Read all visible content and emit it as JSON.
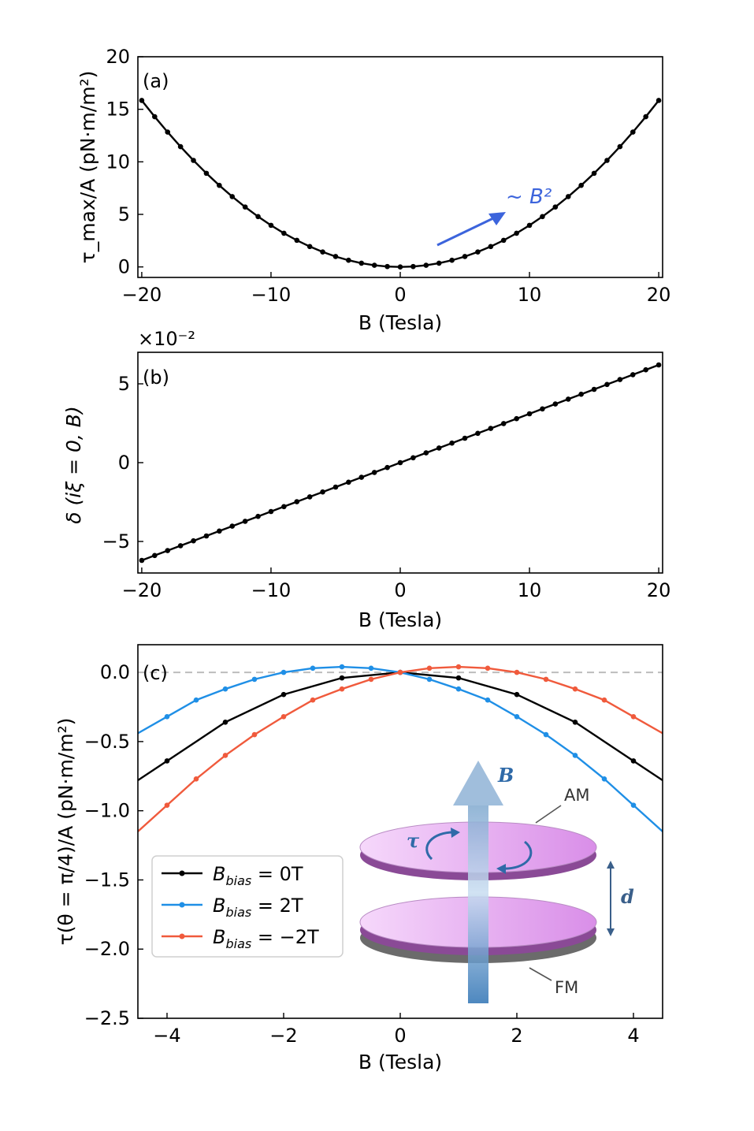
{
  "colors": {
    "black": "#000000",
    "blue": "#1f8fe6",
    "red": "#f05a3c",
    "annot": "#3c64dc",
    "disk": "#e7a6f2",
    "disk_edge": "#8a4a96",
    "arrow": "#4a8cc8"
  },
  "chart_data": [
    {
      "panel": "(a)",
      "type": "line",
      "xlabel": "B (Tesla)",
      "ylabel": "τ_max/A (pN·m/m²)",
      "xlim": [
        -20.3,
        20.3
      ],
      "ylim": [
        -1,
        20
      ],
      "xticks": [
        -20,
        -10,
        0,
        10,
        20
      ],
      "xtick_labels": [
        "−20",
        "−10",
        "0",
        "10",
        "20"
      ],
      "yticks": [
        0,
        5,
        10,
        15,
        20
      ],
      "ytick_labels": [
        "0",
        "5",
        "10",
        "15",
        "20"
      ],
      "annotation": "~ B²",
      "series": [
        {
          "name": "tau_max",
          "color": "#000000",
          "model": "quadratic",
          "coef": 0.0396,
          "x_start": -20,
          "x_end": 20,
          "n": 41
        }
      ]
    },
    {
      "panel": "(b)",
      "type": "line",
      "xlabel": "B (Tesla)",
      "ylabel": "δ (iξ = 0, B)",
      "scale_label": "×10⁻²",
      "xlim": [
        -20.3,
        20.3
      ],
      "ylim": [
        -7,
        7
      ],
      "xticks": [
        -20,
        -10,
        0,
        10,
        20
      ],
      "xtick_labels": [
        "−20",
        "−10",
        "0",
        "10",
        "20"
      ],
      "yticks": [
        -5,
        0,
        5
      ],
      "ytick_labels": [
        "−5",
        "0",
        "5"
      ],
      "series": [
        {
          "name": "delta",
          "color": "#000000",
          "model": "linear",
          "coef": 0.31,
          "x_start": -20,
          "x_end": 20,
          "n": 41
        }
      ]
    },
    {
      "panel": "(c)",
      "type": "line",
      "xlabel": "B (Tesla)",
      "ylabel": "τ(θ = π/4)/A (pN·m/m²)",
      "xlim": [
        -4.5,
        4.5
      ],
      "ylim": [
        -2.5,
        0.2
      ],
      "xticks": [
        -4,
        -2,
        0,
        2,
        4
      ],
      "xtick_labels": [
        "−4",
        "−2",
        "0",
        "2",
        "4"
      ],
      "yticks": [
        0.0,
        -0.5,
        -1.0,
        -1.5,
        -2.0,
        -2.5
      ],
      "ytick_labels": [
        "0.0",
        "−0.5",
        "−1.0",
        "−1.5",
        "−2.0",
        "−2.5"
      ],
      "reference_line": 0.0,
      "series": [
        {
          "name": "B_bias = 0T",
          "label_main": "B",
          "label_sub": "bias",
          "label_val": " = 0T",
          "color": "#000000",
          "x": [
            -4,
            -3,
            -2,
            -1,
            0,
            1,
            2,
            3,
            4
          ],
          "y": [
            -0.64,
            -0.36,
            -0.16,
            -0.04,
            0.0,
            -0.04,
            -0.16,
            -0.36,
            -0.64
          ]
        },
        {
          "name": "B_bias = 2T",
          "label_main": "B",
          "label_sub": "bias",
          "label_val": " = 2T",
          "color": "#1f8fe6",
          "x": [
            -4,
            -3.5,
            -3,
            -2.5,
            -2,
            -1.5,
            -1,
            -0.5,
            0,
            0.5,
            1,
            1.5,
            2,
            2.5,
            3,
            3.5,
            4
          ],
          "y": [
            -0.32,
            -0.2,
            -0.12,
            -0.05,
            0.0,
            0.03,
            0.04,
            0.03,
            0.0,
            -0.05,
            -0.12,
            -0.2,
            -0.32,
            -0.45,
            -0.6,
            -0.77,
            -0.96
          ]
        },
        {
          "name": "B_bias = −2T",
          "label_main": "B",
          "label_sub": "bias",
          "label_val": " = −2T",
          "color": "#f05a3c",
          "x": [
            -4,
            -3.5,
            -3,
            -2.5,
            -2,
            -1.5,
            -1,
            -0.5,
            0,
            0.5,
            1,
            1.5,
            2,
            2.5,
            3,
            3.5,
            4
          ],
          "y": [
            -0.96,
            -0.77,
            -0.6,
            -0.45,
            -0.32,
            -0.2,
            -0.12,
            -0.05,
            0.0,
            0.03,
            0.04,
            0.03,
            0.0,
            -0.05,
            -0.12,
            -0.2,
            -0.32
          ]
        }
      ],
      "inset": {
        "B_label": "B",
        "tau_label": "τ",
        "d_label": "d",
        "top_label": "AM",
        "bottom_label": "FM"
      }
    }
  ]
}
